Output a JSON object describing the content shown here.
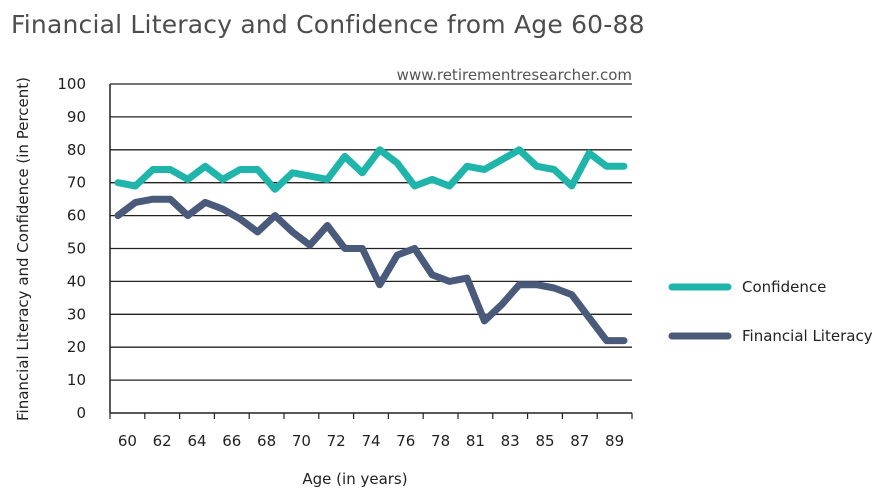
{
  "chart_data": {
    "type": "line",
    "title": "Financial Literacy and Confidence from Age 60-88",
    "watermark": "www.retirementresearcher.com",
    "xlabel": "Age (in years)",
    "ylabel": "Financial Literacy and Confidence (in Percent)",
    "ylim": [
      0,
      100
    ],
    "xlim": [
      60,
      89
    ],
    "yticks": [
      0,
      10,
      20,
      30,
      40,
      50,
      60,
      70,
      80,
      90,
      100
    ],
    "xticks": [
      "60",
      "62",
      "64",
      "66",
      "68",
      "70",
      "72",
      "74",
      "76",
      "78",
      "81",
      "83",
      "85",
      "87",
      "89"
    ],
    "grid": true,
    "legend_position": "right",
    "x": [
      60,
      61,
      62,
      63,
      64,
      65,
      66,
      67,
      68,
      69,
      70,
      71,
      72,
      73,
      74,
      75,
      76,
      77,
      78,
      79,
      80,
      81,
      82,
      83,
      84,
      85,
      86,
      87,
      88,
      89
    ],
    "series": [
      {
        "name": "Confidence",
        "color": "#1fb5aa",
        "values": [
          70,
          69,
          74,
          74,
          71,
          75,
          71,
          74,
          74,
          68,
          73,
          72,
          71,
          78,
          73,
          80,
          76,
          69,
          71,
          69,
          75,
          74,
          77,
          80,
          75,
          74,
          69,
          79,
          75,
          75
        ]
      },
      {
        "name": "Financial Literacy",
        "color": "#4a5a7b",
        "values": [
          60,
          64,
          65,
          65,
          60,
          64,
          62,
          59,
          55,
          60,
          55,
          51,
          57,
          50,
          50,
          39,
          48,
          50,
          42,
          40,
          41,
          28,
          33,
          39,
          39,
          38,
          36,
          29,
          22,
          22
        ]
      }
    ]
  }
}
